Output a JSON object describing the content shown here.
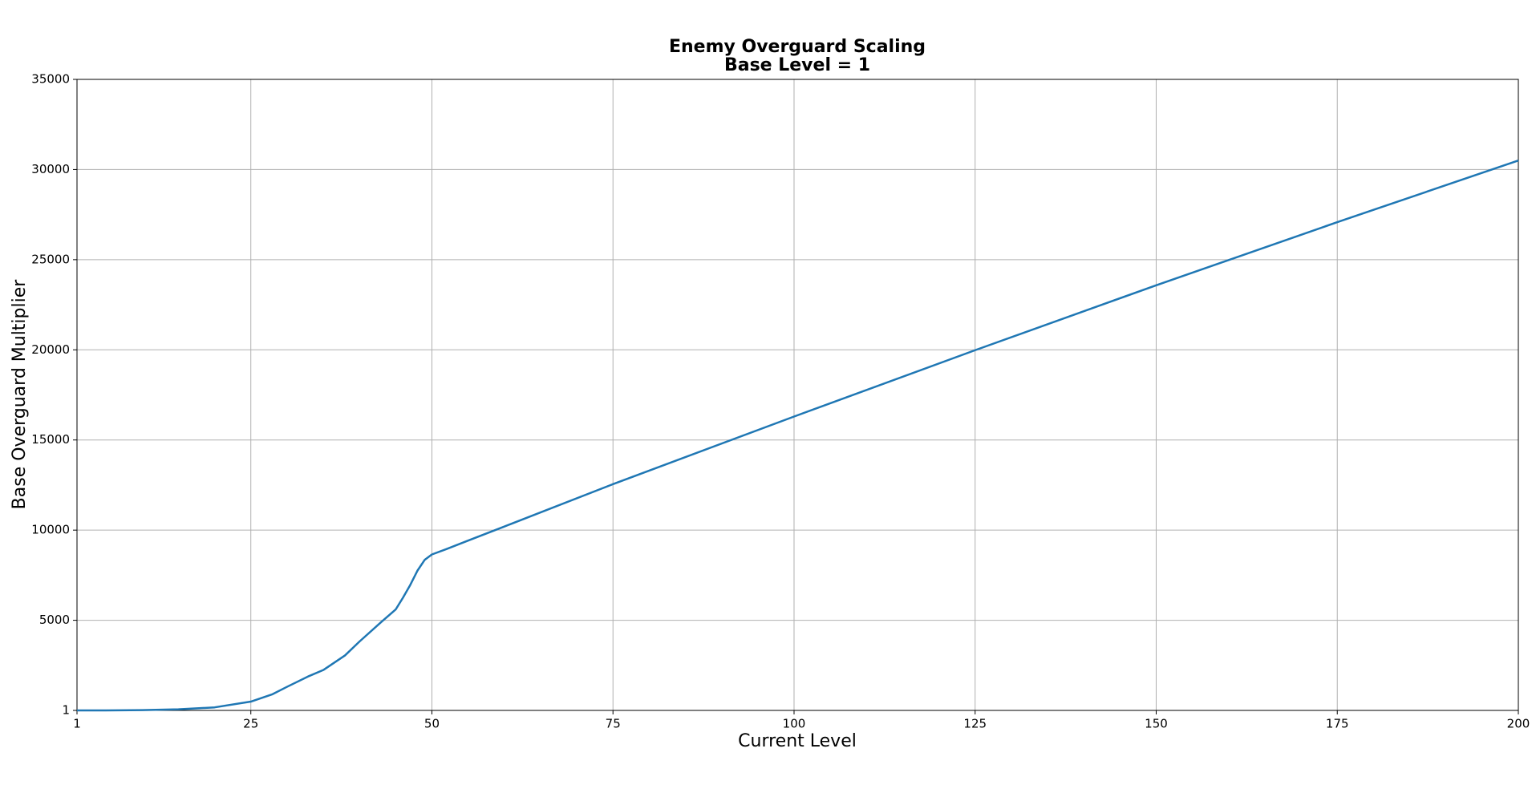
{
  "chart_data": {
    "type": "line",
    "title": "Enemy Overguard Scaling",
    "subtitle": "Base Level = 1",
    "x_label": "Current Level",
    "y_label": "Base Overguard Multiplier",
    "x": [
      1,
      5,
      10,
      15,
      20,
      25,
      28,
      30,
      33,
      35,
      38,
      40,
      43,
      45,
      46,
      47,
      48,
      49,
      50,
      52,
      55,
      60,
      75,
      100,
      125,
      150,
      175,
      200
    ],
    "series": [
      {
        "name": "Overguard",
        "color": "#1f77b4",
        "values": [
          1,
          3,
          15,
          60,
          170,
          490,
          900,
          1310,
          1900,
          2240,
          3050,
          3820,
          4900,
          5600,
          6250,
          6950,
          7750,
          8350,
          8650,
          8950,
          9420,
          10200,
          12550,
          16300,
          19980,
          23580,
          27080,
          30500
        ]
      }
    ],
    "xlim": [
      1,
      200
    ],
    "xticks": [
      1,
      25,
      50,
      75,
      100,
      125,
      150,
      175,
      200
    ],
    "ylim": [
      1,
      35000
    ],
    "yticks": [
      1,
      5000,
      10000,
      15000,
      20000,
      25000,
      30000,
      35000
    ],
    "grid": true
  }
}
